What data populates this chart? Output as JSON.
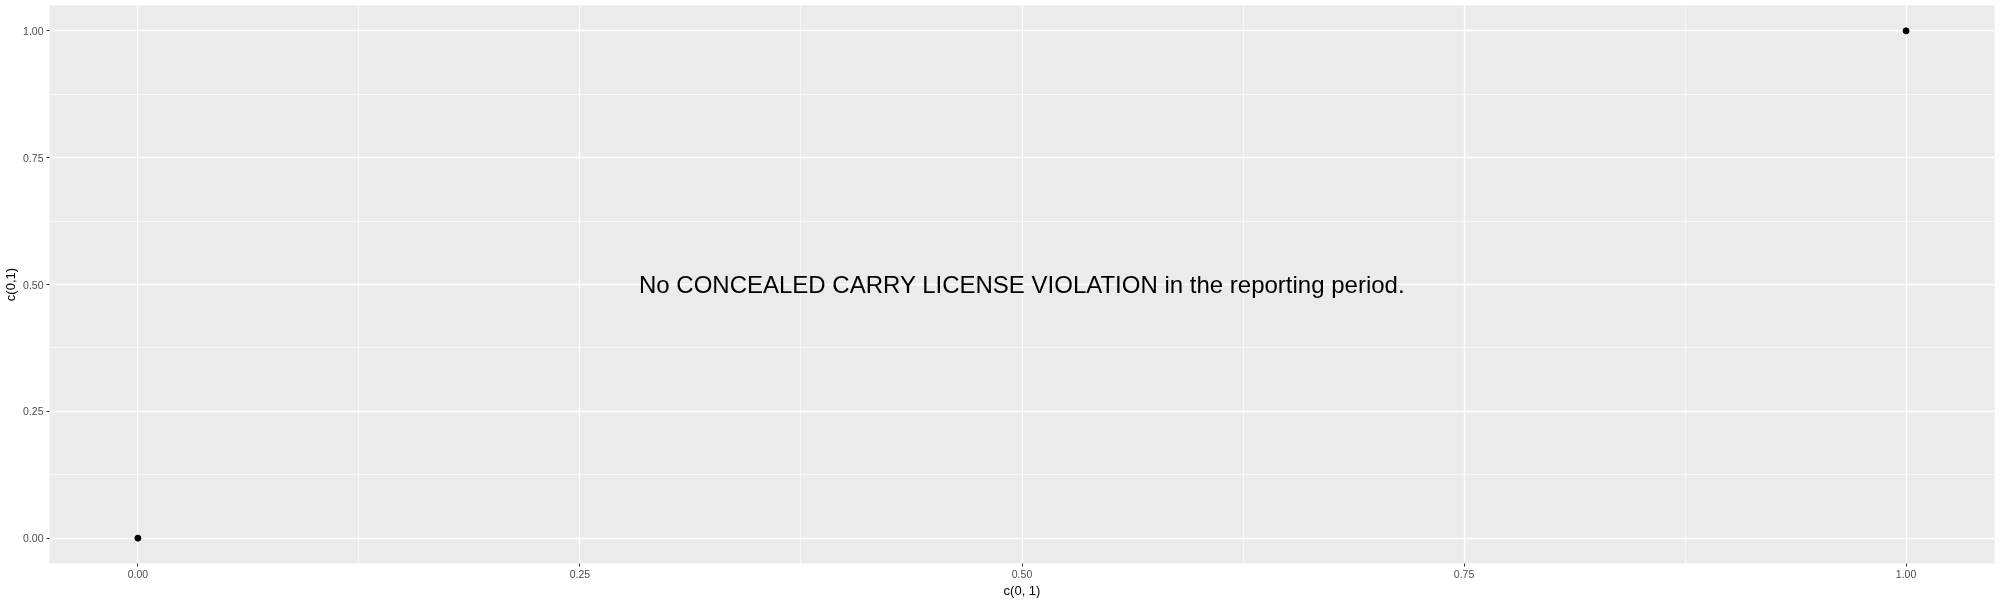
{
  "chart_data": {
    "type": "scatter",
    "xlabel": "c(0, 1)",
    "ylabel": "c(0,1)",
    "x": [
      0,
      1
    ],
    "series": [
      {
        "color": "#000000",
        "values": [
          0,
          1
        ]
      }
    ],
    "xlim": [
      -0.05,
      1.05
    ],
    "ylim": [
      -0.05,
      1.05
    ],
    "xticks": [
      {
        "value": 0,
        "label": "0.00"
      },
      {
        "value": 0.25,
        "label": "0.25"
      },
      {
        "value": 0.5,
        "label": "0.50"
      },
      {
        "value": 0.75,
        "label": "0.75"
      },
      {
        "value": 1,
        "label": "1.00"
      }
    ],
    "yticks": [
      {
        "value": 0,
        "label": "0.00"
      },
      {
        "value": 0.25,
        "label": "0.25"
      },
      {
        "value": 0.5,
        "label": "0.50"
      },
      {
        "value": 0.75,
        "label": "0.75"
      },
      {
        "value": 1,
        "label": "1.00"
      }
    ],
    "grid": true,
    "marker": "circle",
    "annotations": [
      "No CONCEALED CARRY LICENSE VIOLATION in the reporting period."
    ]
  }
}
